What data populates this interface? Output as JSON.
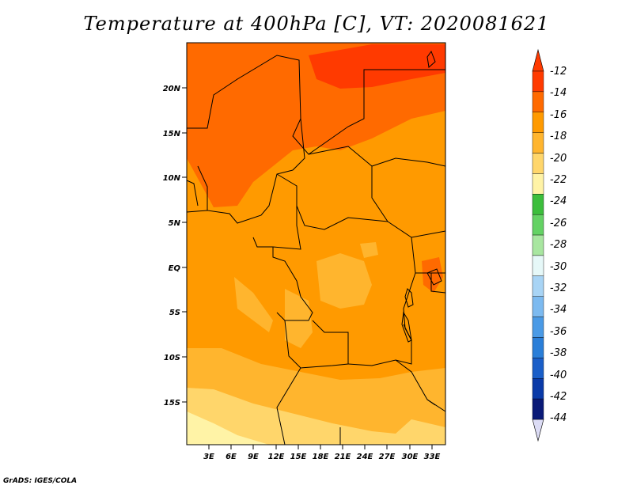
{
  "title": "Temperature at 400hPa [C], VT: 2020081621",
  "credit": "GrADS: IGES/COLA",
  "map": {
    "lat_labels": [
      "20N",
      "15N",
      "10N",
      "5N",
      "EQ",
      "5S",
      "10S",
      "15S"
    ],
    "lon_labels": [
      "3E",
      "6E",
      "9E",
      "12E",
      "15E",
      "18E",
      "21E",
      "24E",
      "27E",
      "30E",
      "33E"
    ]
  },
  "colorbar": {
    "levels": [
      "-12",
      "-14",
      "-16",
      "-18",
      "-20",
      "-22",
      "-24",
      "-26",
      "-28",
      "-30",
      "-32",
      "-34",
      "-36",
      "-38",
      "-40",
      "-42",
      "-44"
    ],
    "colors": [
      "#ff3a00",
      "#ff6a00",
      "#ff9a00",
      "#ffb52e",
      "#ffd66b",
      "#fff3a6",
      "#3cbe3c",
      "#64d264",
      "#a8e6a0",
      "#e6f8f8",
      "#a8d4f5",
      "#7cbaf0",
      "#4a9ae6",
      "#2a7ed8",
      "#1a5ec8",
      "#0a3aa8",
      "#0a1a78"
    ],
    "top_color": "#ff3a00",
    "bottom_color": "#dcdcf5"
  },
  "chart_data": {
    "type": "heatmap",
    "title": "Temperature at 400hPa [C], VT: 2020081621",
    "units": "C",
    "level": "400hPa",
    "valid_time": "2020081621",
    "lon_range": [
      0,
      35
    ],
    "lat_range": [
      -20,
      25
    ],
    "legend_levels": [
      -12,
      -14,
      -16,
      -18,
      -20,
      -22,
      -24,
      -26,
      -28,
      -30,
      -32,
      -34,
      -36,
      -38,
      -40,
      -42,
      -44
    ]
  }
}
